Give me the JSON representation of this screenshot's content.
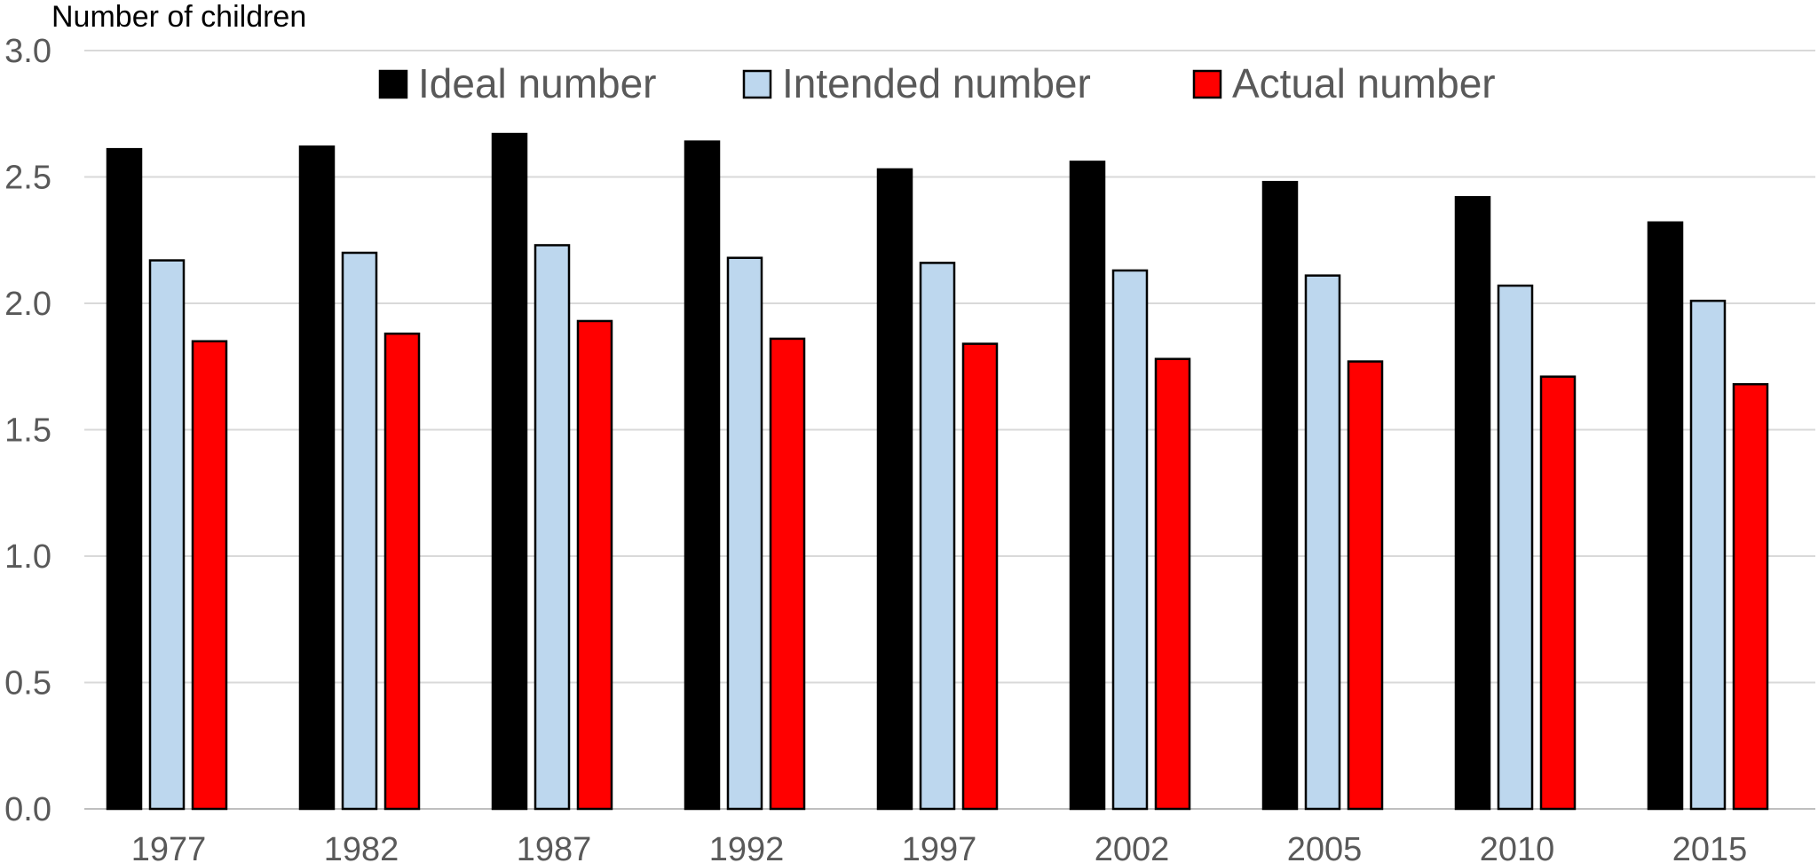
{
  "chart_data": {
    "type": "bar",
    "title": "",
    "xlabel": "",
    "ylabel": "Number of children",
    "ylim": [
      0,
      3.0
    ],
    "yticks": [
      "0.0",
      "0.5",
      "1.0",
      "1.5",
      "2.0",
      "2.5",
      "3.0"
    ],
    "grid": true,
    "legend_position": "top",
    "categories": [
      "1977",
      "1982",
      "1987",
      "1992",
      "1997",
      "2002",
      "2005",
      "2010",
      "2015"
    ],
    "series": [
      {
        "name": "Ideal number",
        "color": "#000000",
        "values": [
          2.61,
          2.62,
          2.67,
          2.64,
          2.53,
          2.56,
          2.48,
          2.42,
          2.32
        ]
      },
      {
        "name": "Intended number",
        "color": "#BDD7EE",
        "values": [
          2.17,
          2.2,
          2.23,
          2.18,
          2.16,
          2.13,
          2.11,
          2.07,
          2.01
        ]
      },
      {
        "name": "Actual number",
        "color": "#FF0000",
        "values": [
          1.85,
          1.88,
          1.93,
          1.86,
          1.84,
          1.78,
          1.77,
          1.71,
          1.68
        ]
      }
    ]
  }
}
